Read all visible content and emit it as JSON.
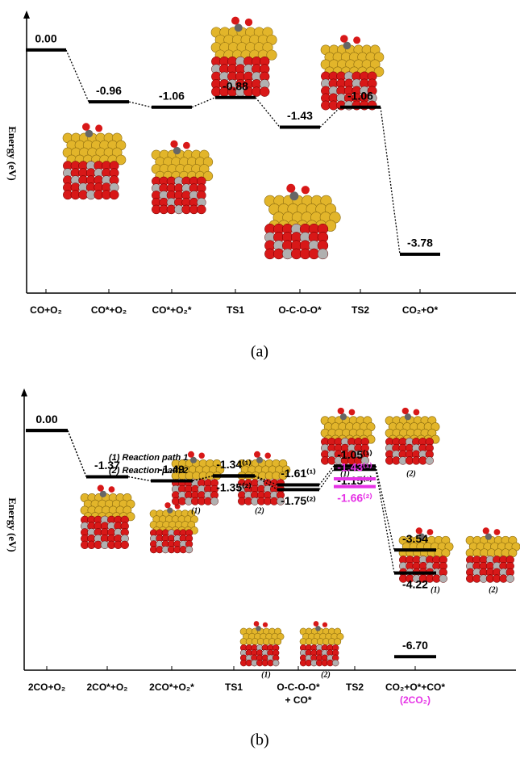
{
  "chart_data": [
    {
      "type": "energy",
      "caption": "(a)",
      "y_label": "Energy (eV)",
      "categories": [
        "CO+O₂",
        "CO*+O₂",
        "CO*+O₂*",
        "TS1",
        "O-C-O-O*",
        "TS2",
        "CO₂+O*"
      ],
      "values": [
        0.0,
        -0.96,
        -1.06,
        -0.88,
        -1.43,
        -1.06,
        -3.78
      ],
      "value_labels": [
        "0.00",
        "-0.96",
        "-1.06",
        "-0.88",
        "-1.43",
        "-1.06",
        "-3.78"
      ],
      "color": "#000000",
      "ylim": [
        -4.5,
        0.7
      ]
    },
    {
      "type": "energy",
      "caption": "(b)",
      "y_label": "Energy (eV)",
      "categories": [
        "2CO+O₂",
        "2CO*+O₂",
        "2CO*+O₂*",
        "TS1",
        "O-C-O-O*",
        "TS2",
        "CO₂+O*+CO*"
      ],
      "category_sublabels": [
        null,
        null,
        null,
        null,
        "+ CO*",
        null,
        "(2CO₂)"
      ],
      "sublabel_colors": [
        null,
        null,
        null,
        null,
        "#000000",
        null,
        "#e632e6"
      ],
      "structure_captions": [
        "(1)",
        "(2)"
      ],
      "series": [
        {
          "name": "(1) Reaction path 1",
          "color": "#000000",
          "values": [
            0.0,
            -1.37,
            -1.49,
            -1.34,
            -1.61,
            -1.05,
            -3.54
          ],
          "value_labels": [
            "0.00",
            "-1.37",
            "-1.49",
            "-1.34⁽¹⁾",
            "-1.61⁽¹⁾",
            "-1.05⁽¹⁾",
            "-3.54"
          ]
        },
        {
          "name": "(2) Reaction path 2",
          "color": "#000000",
          "values": [
            0.0,
            -1.37,
            -1.49,
            -1.35,
            -1.75,
            -1.15,
            -4.22
          ],
          "value_labels": [
            null,
            null,
            null,
            "-1.35⁽²⁾",
            "-1.75⁽²⁾",
            "-1.15⁽²⁾",
            "-4.22"
          ]
        },
        {
          "color": "#e632e6",
          "values": [
            null,
            null,
            null,
            null,
            null,
            -1.43,
            null
          ],
          "value_labels": [
            null,
            null,
            null,
            null,
            null,
            "-1.43⁽¹⁾",
            null
          ]
        },
        {
          "color": "#e632e6",
          "values": [
            null,
            null,
            null,
            null,
            null,
            -1.66,
            null
          ],
          "value_labels": [
            null,
            null,
            null,
            null,
            null,
            "-1.66⁽²⁾",
            null
          ]
        },
        {
          "color": "#000000",
          "values": [
            null,
            null,
            null,
            null,
            null,
            null,
            -6.7
          ],
          "value_labels": [
            null,
            null,
            null,
            null,
            null,
            null,
            "-6.70"
          ]
        }
      ],
      "ylim": [
        -7.1,
        1.2
      ]
    }
  ]
}
